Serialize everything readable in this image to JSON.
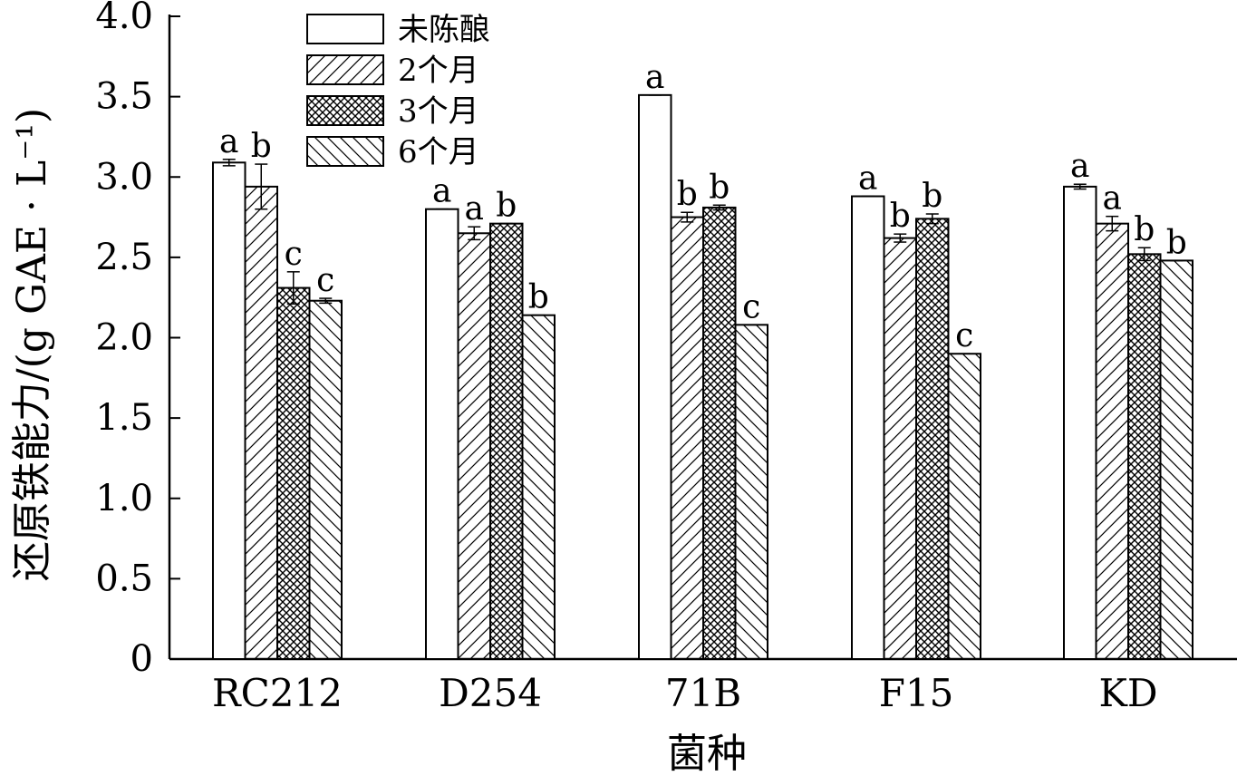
{
  "chart_data": {
    "type": "bar",
    "xlabel": "菌种",
    "ylabel": "还原铁能力/(g GAE · L⁻¹)",
    "ylim": [
      0,
      4.0
    ],
    "yticks": [
      "0",
      "0.5",
      "1.0",
      "1.5",
      "2.0",
      "2.5",
      "3.0",
      "3.5",
      "4.0"
    ],
    "categories": [
      "RC212",
      "D254",
      "71B",
      "F15",
      "KD"
    ],
    "legend_position": "top-left",
    "grid": false,
    "series": [
      {
        "name": "未陈酿",
        "pattern": "none",
        "values": [
          3.09,
          2.8,
          3.51,
          2.88,
          2.94
        ],
        "errors": [
          0.02,
          0.0,
          0.0,
          0.0,
          0.015
        ],
        "labels": [
          "a",
          "a",
          "a",
          "a",
          "a"
        ]
      },
      {
        "name": "2个月",
        "pattern": "diag-forward",
        "values": [
          2.94,
          2.65,
          2.75,
          2.62,
          2.71
        ],
        "errors": [
          0.14,
          0.04,
          0.03,
          0.025,
          0.045
        ],
        "labels": [
          "b",
          "a",
          "b",
          "b",
          "a"
        ]
      },
      {
        "name": "3个月",
        "pattern": "crosshatch",
        "values": [
          2.31,
          2.71,
          2.81,
          2.74,
          2.52
        ],
        "errors": [
          0.1,
          0.0,
          0.015,
          0.03,
          0.04
        ],
        "labels": [
          "c",
          "b",
          "b",
          "b",
          "b"
        ]
      },
      {
        "name": "6个月",
        "pattern": "diag-back",
        "values": [
          2.23,
          2.14,
          2.08,
          1.9,
          2.48
        ],
        "errors": [
          0.015,
          0.0,
          0.0,
          0.0,
          0.0
        ],
        "labels": [
          "c",
          "b",
          "c",
          "c",
          "b"
        ]
      }
    ]
  }
}
